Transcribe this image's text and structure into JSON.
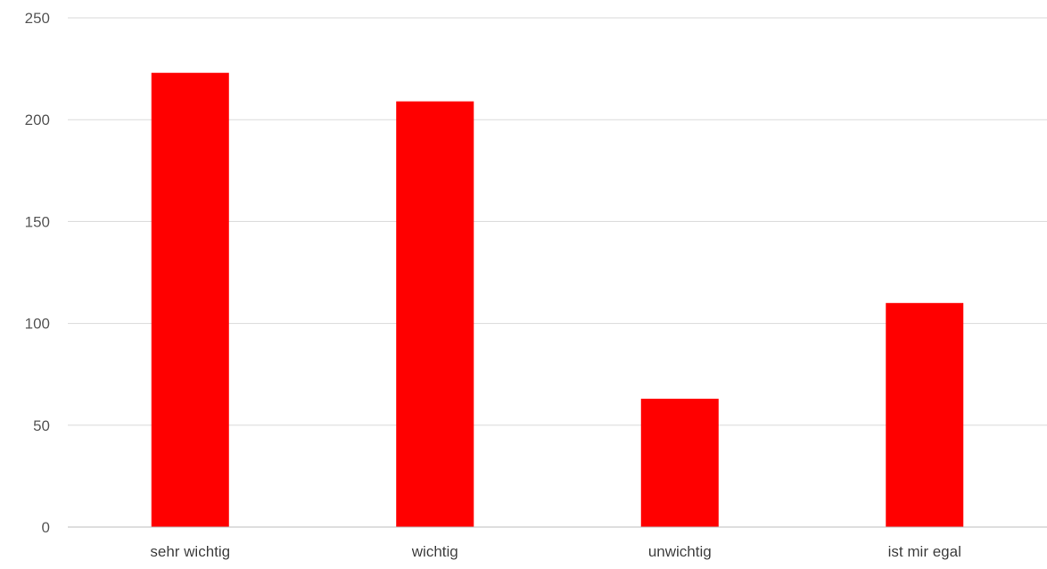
{
  "chart_data": {
    "type": "bar",
    "title": "",
    "xlabel": "",
    "ylabel": "",
    "categories": [
      "sehr wichtig",
      "wichtig",
      "unwichtig",
      "ist mir egal"
    ],
    "values": [
      223,
      209,
      63,
      110
    ],
    "ylim": [
      0,
      250
    ],
    "yticks": [
      0,
      50,
      100,
      150,
      200,
      250
    ],
    "grid": true,
    "legend": "none",
    "colors": {
      "bar": "#ff0000",
      "grid": "#d9d9d9",
      "axis": "#bfbfbf"
    }
  }
}
